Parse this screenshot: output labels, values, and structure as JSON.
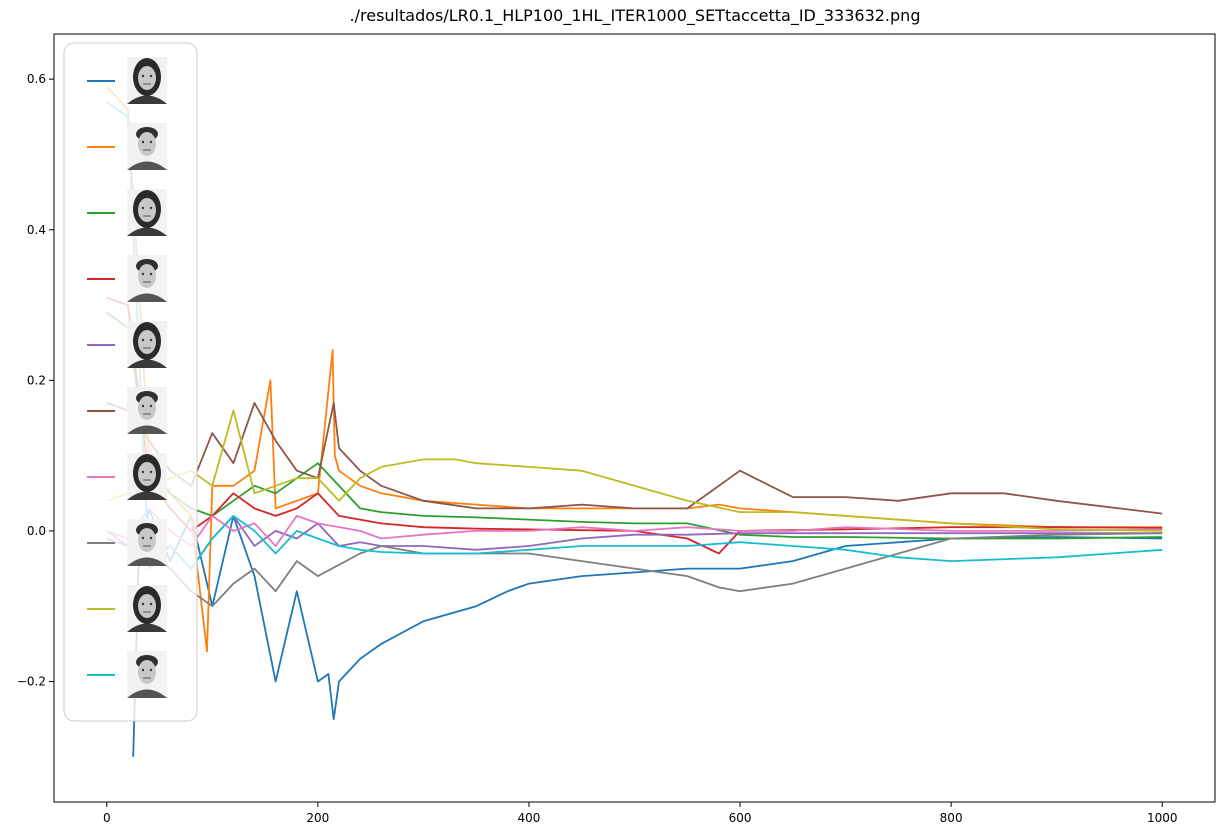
{
  "chart_data": {
    "type": "line",
    "title": "./resultados/LR0.1_HLP100_1HL_ITER1000_SETtaccetta_ID_333632.png",
    "xlabel": "",
    "ylabel": "",
    "xlim": [
      -50,
      1050
    ],
    "ylim": [
      -0.36,
      0.66
    ],
    "x_ticks": [
      0,
      200,
      400,
      600,
      800,
      1000
    ],
    "y_ticks": [
      -0.2,
      0.0,
      0.2,
      0.4,
      0.6
    ],
    "x_tick_labels": [
      "0",
      "200",
      "400",
      "600",
      "800",
      "1000"
    ],
    "y_tick_labels": [
      "−0.2",
      "0.0",
      "0.2",
      "0.4",
      "0.6"
    ],
    "grid": false,
    "legend": {
      "placement": "upper-left",
      "entries": [
        "female-neutral-face",
        "male-neutral-face",
        "female-smiling-face",
        "male-smiling-face",
        "female-frowning-face",
        "male-screaming-face",
        "female-surprised-face",
        "male-surprised-face",
        "female-calm-face",
        "male-calm-face"
      ]
    },
    "series": [
      {
        "color": "#1f77b4",
        "x": [
          25,
          30,
          40,
          60,
          80,
          100,
          120,
          140,
          160,
          180,
          200,
          210,
          215,
          220,
          240,
          260,
          300,
          350,
          380,
          400,
          450,
          500,
          550,
          600,
          650,
          700,
          800,
          900,
          1000
        ],
        "y": [
          -0.3,
          -0.05,
          0.03,
          -0.04,
          0.02,
          -0.1,
          0.02,
          -0.06,
          -0.2,
          -0.08,
          -0.2,
          -0.19,
          -0.25,
          -0.2,
          -0.17,
          -0.15,
          -0.12,
          -0.1,
          -0.08,
          -0.07,
          -0.06,
          -0.055,
          -0.05,
          -0.05,
          -0.04,
          -0.02,
          -0.01,
          -0.008,
          -0.01
        ]
      },
      {
        "color": "#ff7f0e",
        "x": [
          0,
          20,
          40,
          60,
          80,
          95,
          100,
          120,
          140,
          155,
          160,
          180,
          200,
          214,
          216,
          220,
          240,
          260,
          300,
          350,
          400,
          450,
          500,
          550,
          580,
          600,
          650,
          700,
          800,
          900,
          1000
        ],
        "y": [
          0.59,
          0.56,
          0.1,
          0.05,
          0.02,
          -0.16,
          0.06,
          0.06,
          0.08,
          0.2,
          0.03,
          0.04,
          0.05,
          0.24,
          0.1,
          0.08,
          0.06,
          0.05,
          0.04,
          0.035,
          0.03,
          0.03,
          0.03,
          0.03,
          0.035,
          0.03,
          0.025,
          0.02,
          0.01,
          0.005,
          0.005
        ]
      },
      {
        "color": "#2ca02c",
        "x": [
          0,
          20,
          40,
          60,
          80,
          100,
          120,
          140,
          160,
          180,
          200,
          220,
          240,
          260,
          300,
          350,
          400,
          450,
          500,
          550,
          600,
          650,
          700,
          800,
          900,
          1000
        ],
        "y": [
          0.29,
          0.27,
          0.08,
          0.05,
          0.03,
          0.02,
          0.04,
          0.06,
          0.05,
          0.07,
          0.09,
          0.06,
          0.03,
          0.025,
          0.02,
          0.018,
          0.015,
          0.012,
          0.01,
          0.01,
          -0.005,
          -0.008,
          -0.008,
          -0.01,
          -0.01,
          -0.008
        ]
      },
      {
        "color": "#d62728",
        "x": [
          0,
          20,
          40,
          60,
          80,
          100,
          120,
          140,
          160,
          180,
          200,
          220,
          240,
          260,
          300,
          350,
          400,
          450,
          500,
          550,
          580,
          600,
          700,
          800,
          900,
          1000
        ],
        "y": [
          0.31,
          0.3,
          0.07,
          0.03,
          0.0,
          0.02,
          0.05,
          0.03,
          0.02,
          0.03,
          0.05,
          0.02,
          0.015,
          0.01,
          0.005,
          0.003,
          0.002,
          0.001,
          0.0,
          -0.01,
          -0.03,
          0.0,
          0.002,
          0.005,
          0.005,
          0.004
        ]
      },
      {
        "color": "#9467bd",
        "x": [
          0,
          20,
          40,
          60,
          80,
          100,
          120,
          140,
          160,
          180,
          200,
          220,
          240,
          260,
          300,
          350,
          400,
          450,
          500,
          550,
          600,
          650,
          700,
          800,
          900,
          1000
        ],
        "y": [
          0.0,
          -0.02,
          -0.04,
          -0.02,
          -0.05,
          -0.01,
          0.02,
          -0.02,
          0.0,
          -0.01,
          0.01,
          -0.02,
          -0.015,
          -0.02,
          -0.02,
          -0.025,
          -0.02,
          -0.01,
          -0.005,
          -0.005,
          -0.003,
          -0.003,
          -0.003,
          -0.003,
          -0.003,
          -0.003
        ]
      },
      {
        "color": "#8c564b",
        "x": [
          0,
          20,
          40,
          60,
          80,
          100,
          120,
          140,
          160,
          180,
          200,
          215,
          220,
          240,
          260,
          300,
          350,
          400,
          450,
          500,
          550,
          600,
          650,
          700,
          750,
          800,
          850,
          900,
          1000
        ],
        "y": [
          0.17,
          0.16,
          0.12,
          0.08,
          0.06,
          0.13,
          0.09,
          0.17,
          0.12,
          0.08,
          0.07,
          0.17,
          0.11,
          0.08,
          0.06,
          0.04,
          0.03,
          0.03,
          0.035,
          0.03,
          0.03,
          0.08,
          0.045,
          0.045,
          0.04,
          0.05,
          0.05,
          0.04,
          0.023
        ]
      },
      {
        "color": "#e377c2",
        "x": [
          0,
          20,
          40,
          60,
          80,
          100,
          120,
          140,
          160,
          180,
          200,
          240,
          260,
          300,
          350,
          400,
          450,
          500,
          550,
          600,
          650,
          700,
          800,
          900,
          1000
        ],
        "y": [
          0.0,
          -0.01,
          0.03,
          0.0,
          -0.02,
          0.02,
          0.0,
          0.01,
          -0.02,
          0.02,
          0.01,
          0.0,
          -0.01,
          -0.005,
          0.0,
          0.0,
          0.005,
          0.0,
          0.005,
          0.0,
          0.0,
          0.005,
          0.0,
          0.0,
          0.002
        ]
      },
      {
        "color": "#7f7f7f",
        "x": [
          0,
          20,
          40,
          60,
          80,
          100,
          120,
          140,
          160,
          180,
          200,
          240,
          260,
          300,
          350,
          400,
          450,
          500,
          550,
          580,
          600,
          650,
          700,
          750,
          800,
          900,
          1000
        ],
        "y": [
          -0.01,
          -0.02,
          -0.03,
          -0.05,
          -0.08,
          -0.1,
          -0.07,
          -0.05,
          -0.08,
          -0.04,
          -0.06,
          -0.03,
          -0.02,
          -0.03,
          -0.03,
          -0.03,
          -0.04,
          -0.05,
          -0.06,
          -0.075,
          -0.08,
          -0.07,
          -0.05,
          -0.03,
          -0.01,
          -0.005,
          -0.003
        ]
      },
      {
        "color": "#bcbd22",
        "x": [
          0,
          20,
          40,
          60,
          80,
          100,
          120,
          140,
          160,
          180,
          200,
          220,
          240,
          260,
          300,
          330,
          350,
          400,
          450,
          500,
          550,
          600,
          650,
          700,
          750,
          800,
          900,
          1000
        ],
        "y": [
          0.04,
          0.05,
          0.06,
          0.07,
          0.08,
          0.06,
          0.16,
          0.05,
          0.06,
          0.07,
          0.07,
          0.04,
          0.07,
          0.085,
          0.095,
          0.095,
          0.09,
          0.085,
          0.08,
          0.06,
          0.04,
          0.025,
          0.025,
          0.02,
          0.015,
          0.01,
          0.002,
          0.0
        ]
      },
      {
        "color": "#17becf",
        "x": [
          0,
          20,
          40,
          60,
          80,
          100,
          120,
          140,
          160,
          180,
          200,
          220,
          240,
          260,
          300,
          350,
          400,
          450,
          500,
          550,
          600,
          650,
          700,
          750,
          800,
          900,
          1000
        ],
        "y": [
          0.57,
          0.55,
          -0.05,
          -0.02,
          -0.05,
          -0.01,
          0.02,
          0.0,
          -0.03,
          0.0,
          -0.01,
          -0.02,
          -0.025,
          -0.028,
          -0.03,
          -0.03,
          -0.025,
          -0.02,
          -0.02,
          -0.02,
          -0.015,
          -0.02,
          -0.025,
          -0.035,
          -0.04,
          -0.035,
          -0.025
        ]
      }
    ]
  }
}
